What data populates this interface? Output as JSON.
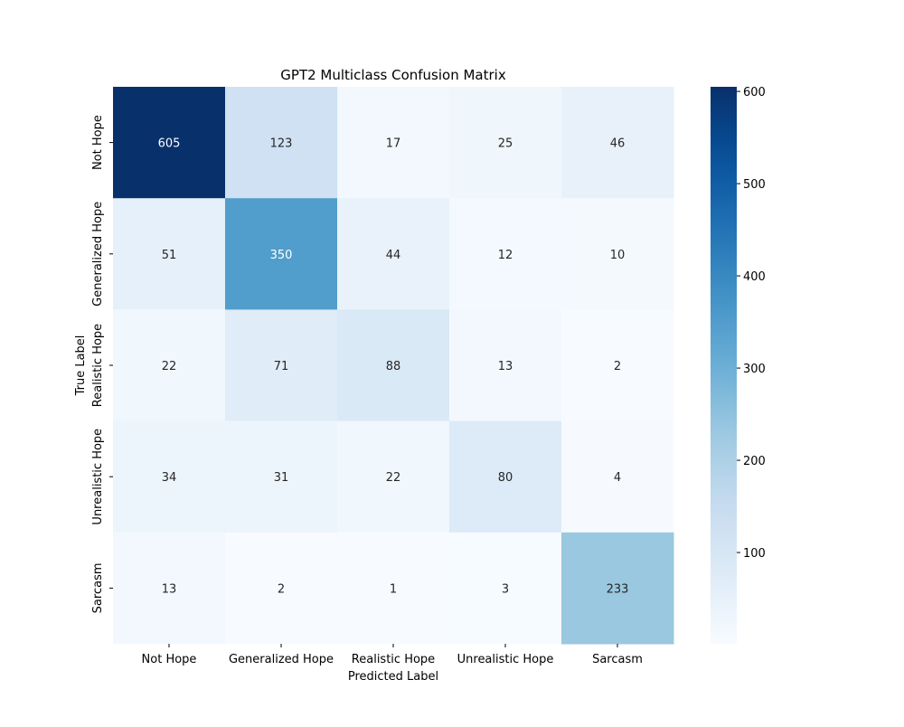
{
  "chart_data": {
    "type": "heatmap",
    "title": "GPT2 Multiclass Confusion Matrix",
    "xlabel": "Predicted Label",
    "ylabel": "True Label",
    "x_categories": [
      "Not Hope",
      "Generalized Hope",
      "Realistic Hope",
      "Unrealistic Hope",
      "Sarcasm"
    ],
    "y_categories": [
      "Not Hope",
      "Generalized Hope",
      "Realistic Hope",
      "Unrealistic Hope",
      "Sarcasm"
    ],
    "values": [
      [
        605,
        123,
        17,
        25,
        46
      ],
      [
        51,
        350,
        44,
        12,
        10
      ],
      [
        22,
        71,
        88,
        13,
        2
      ],
      [
        34,
        31,
        22,
        80,
        4
      ],
      [
        13,
        2,
        1,
        3,
        233
      ]
    ],
    "colormap": "Blues",
    "colorbar": {
      "min": 1,
      "max": 605,
      "ticks": [
        100,
        200,
        300,
        400,
        500,
        600
      ]
    },
    "grid": false
  }
}
